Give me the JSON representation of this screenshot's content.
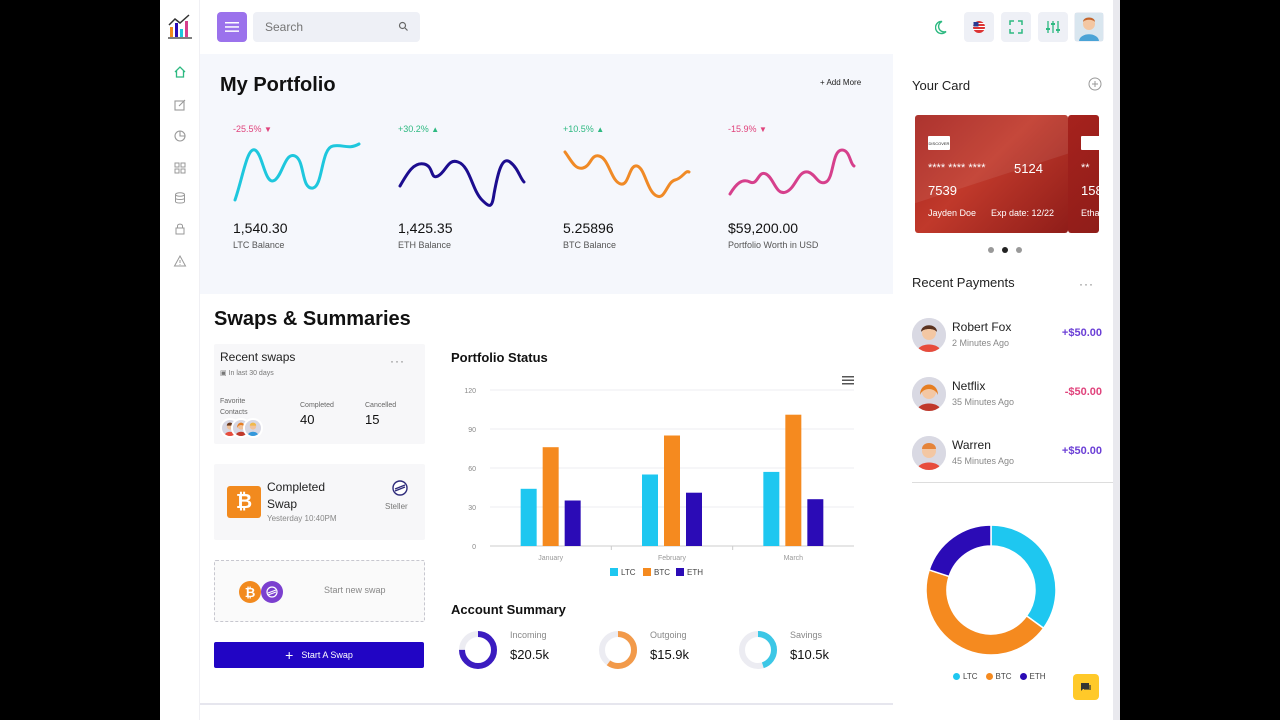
{
  "search": {
    "placeholder": "Search"
  },
  "portfolio": {
    "title": "My Portfolio",
    "add_more": "+ Add More",
    "coins": [
      {
        "pct": "-25.5%",
        "trend": "down",
        "value": "1,540.30",
        "label": "LTC Balance",
        "color": "#1ec7dd"
      },
      {
        "pct": "+30.2%",
        "trend": "up",
        "value": "1,425.35",
        "label": "ETH Balance",
        "color": "#1c0d8f"
      },
      {
        "pct": "+10.5%",
        "trend": "up",
        "value": "5.25896",
        "label": "BTC Balance",
        "color": "#f08a26"
      },
      {
        "pct": "-15.9%",
        "trend": "down",
        "value": "$59,200.00",
        "label": "Portfolio Worth in USD",
        "color": "#d6408c"
      }
    ]
  },
  "swaps": {
    "title": "Swaps & Summaries",
    "recent": {
      "title": "Recent swaps",
      "subtitle": "In last 30 days",
      "favorite_label": "Favorite Contacts",
      "completed_label": "Completed",
      "completed_value": "40",
      "cancelled_label": "Cancelled",
      "cancelled_value": "15"
    },
    "completed_swap": {
      "title": "Completed Swap",
      "time": "Yesterday 10:40PM",
      "network": "Steller"
    },
    "start_new": "Start new swap",
    "start_button": "Start A Swap"
  },
  "portfolio_status": {
    "title": "Portfolio Status",
    "chart_data": {
      "type": "bar",
      "categories": [
        "January",
        "February",
        "March"
      ],
      "series": [
        {
          "name": "LTC",
          "values": [
            44,
            55,
            57
          ],
          "color": "#1ec7f0"
        },
        {
          "name": "BTC",
          "values": [
            76,
            85,
            101
          ],
          "color": "#f58a1f"
        },
        {
          "name": "ETH",
          "values": [
            35,
            41,
            36
          ],
          "color": "#2b0bb6"
        }
      ],
      "ylim": [
        0,
        120
      ],
      "yticks": [
        "0",
        "30",
        "60",
        "90",
        "120"
      ],
      "grid": true,
      "legend": "bottom"
    }
  },
  "account_summary": {
    "title": "Account Summary",
    "items": [
      {
        "label": "Incoming",
        "value": "$20.5k",
        "color": "#3b1cc0",
        "fill": 0.75
      },
      {
        "label": "Outgoing",
        "value": "$15.9k",
        "color": "#f29a4a",
        "fill": 0.6
      },
      {
        "label": "Savings",
        "value": "$10.5k",
        "color": "#3cc7e6",
        "fill": 0.45
      }
    ]
  },
  "your_card": {
    "title": "Your Card",
    "brand": "DISCOVER",
    "number_mask": "**** **** ****",
    "number_end": "5124",
    "number_start": "7539",
    "holder": "Jayden Doe",
    "exp": "Exp date: 12/22",
    "next_number": "158",
    "next_holder": "Etha"
  },
  "recent_payments": {
    "title": "Recent Payments",
    "items": [
      {
        "name": "Robert Fox",
        "time": "2 Minutes Ago",
        "amount": "+$50.00",
        "color": "#6b3fd6"
      },
      {
        "name": "Netflix",
        "time": "35 Minutes Ago",
        "amount": "-$50.00",
        "color": "#e0437c"
      },
      {
        "name": "Warren",
        "time": "45 Minutes Ago",
        "amount": "+$50.00",
        "color": "#6b3fd6"
      }
    ]
  },
  "donut": {
    "chart_data": {
      "type": "pie",
      "categories": [
        "LTC",
        "BTC",
        "ETH"
      ],
      "values": [
        35,
        45,
        20
      ],
      "colors": [
        "#1ec7f0",
        "#f58a1f",
        "#2b0bb6"
      ],
      "legend": "bottom"
    }
  }
}
